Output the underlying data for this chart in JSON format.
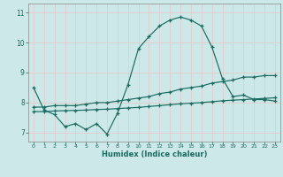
{
  "xlabel": "Humidex (Indice chaleur)",
  "background_color": "#cce8e8",
  "grid_color": "#b0d4d4",
  "line_color": "#1a6b60",
  "xlim": [
    -0.5,
    23.5
  ],
  "ylim": [
    6.7,
    11.3
  ],
  "yticks": [
    7,
    8,
    9,
    10,
    11
  ],
  "xticks": [
    0,
    1,
    2,
    3,
    4,
    5,
    6,
    7,
    8,
    9,
    10,
    11,
    12,
    13,
    14,
    15,
    16,
    17,
    18,
    19,
    20,
    21,
    22,
    23
  ],
  "series1_x": [
    0,
    1,
    2,
    3,
    4,
    5,
    6,
    7,
    8,
    9,
    10,
    11,
    12,
    13,
    14,
    15,
    16,
    17,
    18,
    19,
    20,
    21,
    22,
    23
  ],
  "series1_y": [
    8.5,
    7.75,
    7.6,
    7.2,
    7.3,
    7.1,
    7.3,
    6.95,
    7.65,
    8.6,
    9.8,
    10.2,
    10.55,
    10.75,
    10.85,
    10.75,
    10.55,
    9.85,
    8.8,
    8.2,
    8.25,
    8.1,
    8.1,
    8.05
  ],
  "series2_x": [
    0,
    1,
    2,
    3,
    4,
    5,
    6,
    7,
    8,
    9,
    10,
    11,
    12,
    13,
    14,
    15,
    16,
    17,
    18,
    19,
    20,
    21,
    22,
    23
  ],
  "series2_y": [
    7.85,
    7.85,
    7.9,
    7.9,
    7.9,
    7.95,
    8.0,
    8.0,
    8.05,
    8.1,
    8.15,
    8.2,
    8.3,
    8.35,
    8.45,
    8.5,
    8.55,
    8.65,
    8.7,
    8.75,
    8.85,
    8.85,
    8.9,
    8.9
  ],
  "series3_x": [
    0,
    1,
    2,
    3,
    4,
    5,
    6,
    7,
    8,
    9,
    10,
    11,
    12,
    13,
    14,
    15,
    16,
    17,
    18,
    19,
    20,
    21,
    22,
    23
  ],
  "series3_y": [
    7.7,
    7.7,
    7.72,
    7.73,
    7.74,
    7.75,
    7.77,
    7.78,
    7.8,
    7.82,
    7.84,
    7.87,
    7.9,
    7.93,
    7.96,
    7.98,
    8.0,
    8.03,
    8.06,
    8.08,
    8.1,
    8.12,
    8.14,
    8.16
  ]
}
